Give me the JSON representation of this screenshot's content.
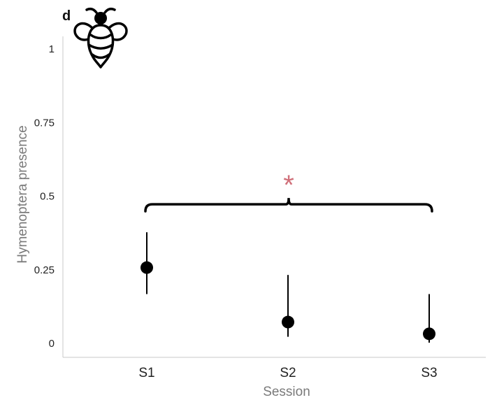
{
  "panel_label": "d",
  "icon": "bee-icon",
  "colors": {
    "points": "#000000",
    "significance": "#d0707a",
    "axis": "#c8c8c8",
    "axis_title": "#7a7a7a"
  },
  "chart_data": {
    "type": "scatter",
    "xlabel": "Session",
    "ylabel": "Hymenoptera presence",
    "categories": [
      "S1",
      "S2",
      "S3"
    ],
    "values": [
      0.255,
      0.07,
      0.03
    ],
    "ci_low": [
      0.165,
      0.02,
      0.0
    ],
    "ci_high": [
      0.375,
      0.23,
      0.165
    ],
    "ylim": [
      0,
      1
    ],
    "yticks": [
      0,
      0.25,
      0.5,
      0.75,
      1
    ],
    "ytick_labels": [
      "0",
      "0.25",
      "0.5",
      "0.75",
      "1"
    ],
    "grid": false,
    "annotations": [
      {
        "type": "bracket",
        "from": "S1",
        "to": "S3",
        "y": 0.47,
        "label": "*"
      }
    ]
  }
}
